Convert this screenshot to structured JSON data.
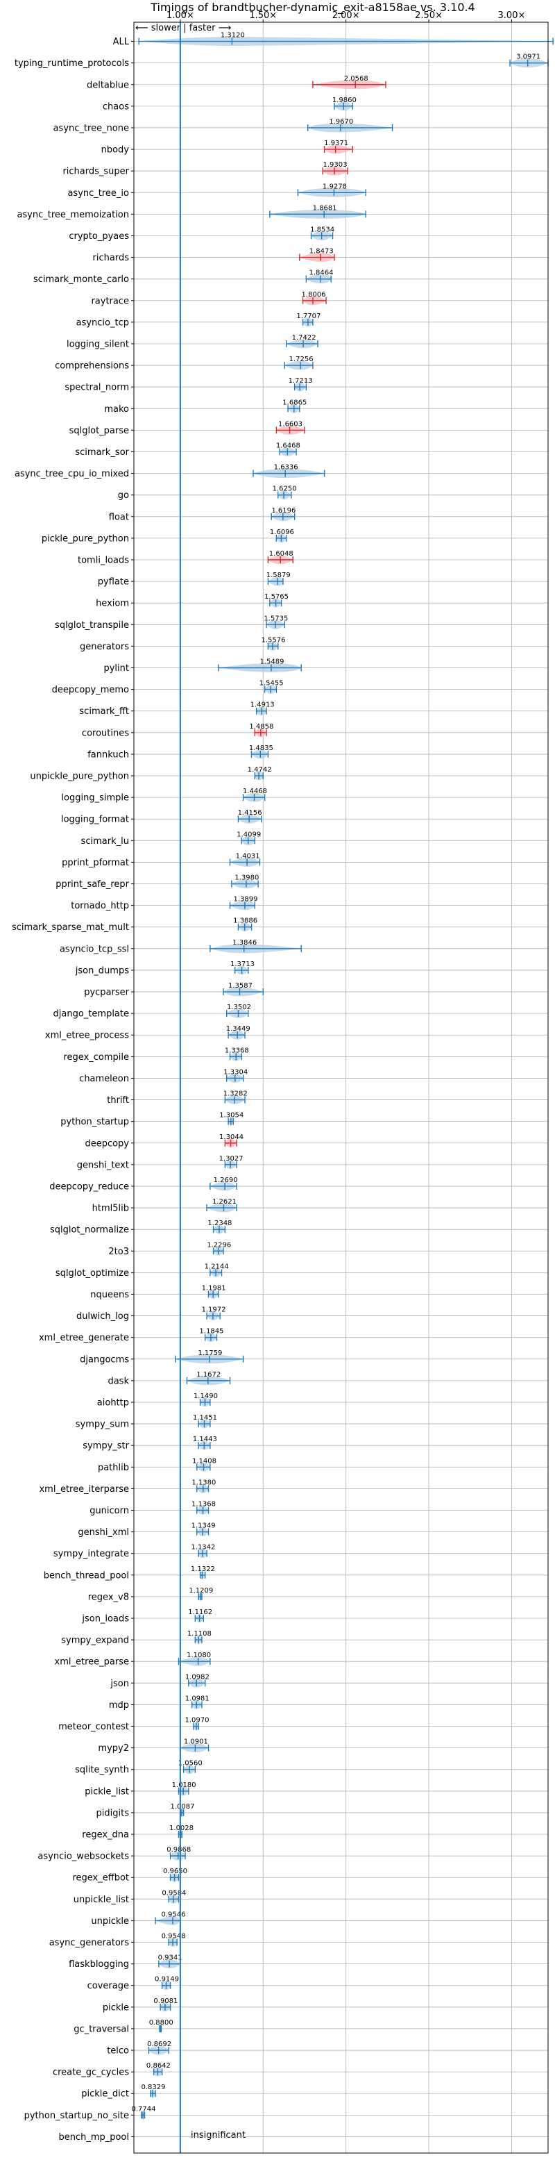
{
  "chart_data": {
    "type": "violin",
    "title": "Timings of brandtbucher-dynamic_exit-a8158ae vs. 3.10.4",
    "direction_note": "⟵ slower | faster ⟶",
    "x_ticks": [
      "1.00×",
      "1.50×",
      "2.00×",
      "2.50×",
      "3.00×"
    ],
    "x_tick_values": [
      1.0,
      1.5,
      2.0,
      2.5,
      3.0
    ],
    "xlim": [
      0.72,
      3.22
    ],
    "grid": true,
    "insignificant_label": "insignificant",
    "colors": {
      "faster": "#1f77b4",
      "faster_fill": "#b3cde3",
      "slower": "#d62728",
      "slower_fill": "#f4b6bb",
      "baseline": "#1f77b4"
    },
    "benchmarks": [
      {
        "name": "ALL",
        "label": "1.3120",
        "value": 1.312,
        "lo": 0.75,
        "hi": 3.25,
        "spread": 0.25,
        "slower": false
      },
      {
        "name": "typing_runtime_protocols",
        "label": "3.0971",
        "value": 3.0971,
        "lo": 2.99,
        "hi": 3.22,
        "spread": 0.07,
        "slower": false
      },
      {
        "name": "deltablue",
        "label": "2.0568",
        "value": 2.0568,
        "lo": 1.8,
        "hi": 2.24,
        "spread": 0.12,
        "slower": true
      },
      {
        "name": "chaos",
        "label": "1.9860",
        "value": 1.986,
        "lo": 1.93,
        "hi": 2.04,
        "spread": 0.03,
        "slower": false
      },
      {
        "name": "async_tree_none",
        "label": "1.9670",
        "value": 1.967,
        "lo": 1.77,
        "hi": 2.28,
        "spread": 0.15,
        "slower": false
      },
      {
        "name": "nbody",
        "label": "1.9371",
        "value": 1.9371,
        "lo": 1.87,
        "hi": 2.04,
        "spread": 0.04,
        "slower": true
      },
      {
        "name": "richards_super",
        "label": "1.9303",
        "value": 1.9303,
        "lo": 1.86,
        "hi": 2.01,
        "spread": 0.05,
        "slower": true
      },
      {
        "name": "async_tree_io",
        "label": "1.9278",
        "value": 1.9278,
        "lo": 1.71,
        "hi": 2.12,
        "spread": 0.14,
        "slower": false
      },
      {
        "name": "async_tree_memoization",
        "label": "1.8681",
        "value": 1.8681,
        "lo": 1.54,
        "hi": 2.12,
        "spread": 0.18,
        "slower": false
      },
      {
        "name": "crypto_pyaes",
        "label": "1.8534",
        "value": 1.8534,
        "lo": 1.79,
        "hi": 1.92,
        "spread": 0.04,
        "slower": false
      },
      {
        "name": "richards",
        "label": "1.8473",
        "value": 1.8473,
        "lo": 1.72,
        "hi": 1.93,
        "spread": 0.06,
        "slower": true
      },
      {
        "name": "scimark_monte_carlo",
        "label": "1.8464",
        "value": 1.8464,
        "lo": 1.76,
        "hi": 1.91,
        "spread": 0.05,
        "slower": false
      },
      {
        "name": "raytrace",
        "label": "1.8006",
        "value": 1.8006,
        "lo": 1.74,
        "hi": 1.88,
        "spread": 0.04,
        "slower": true
      },
      {
        "name": "asyncio_tcp",
        "label": "1.7707",
        "value": 1.7707,
        "lo": 1.74,
        "hi": 1.8,
        "spread": 0.02,
        "slower": false
      },
      {
        "name": "logging_silent",
        "label": "1.7422",
        "value": 1.7422,
        "lo": 1.64,
        "hi": 1.83,
        "spread": 0.05,
        "slower": false
      },
      {
        "name": "comprehensions",
        "label": "1.7256",
        "value": 1.7256,
        "lo": 1.63,
        "hi": 1.8,
        "spread": 0.05,
        "slower": false
      },
      {
        "name": "spectral_norm",
        "label": "1.7213",
        "value": 1.7213,
        "lo": 1.69,
        "hi": 1.76,
        "spread": 0.02,
        "slower": false
      },
      {
        "name": "mako",
        "label": "1.6865",
        "value": 1.6865,
        "lo": 1.65,
        "hi": 1.72,
        "spread": 0.02,
        "slower": false
      },
      {
        "name": "sqlglot_parse",
        "label": "1.6603",
        "value": 1.6603,
        "lo": 1.58,
        "hi": 1.75,
        "spread": 0.05,
        "slower": true
      },
      {
        "name": "scimark_sor",
        "label": "1.6468",
        "value": 1.6468,
        "lo": 1.6,
        "hi": 1.7,
        "spread": 0.03,
        "slower": false
      },
      {
        "name": "async_tree_cpu_io_mixed",
        "label": "1.6336",
        "value": 1.6336,
        "lo": 1.44,
        "hi": 1.87,
        "spread": 0.12,
        "slower": false
      },
      {
        "name": "go",
        "label": "1.6250",
        "value": 1.625,
        "lo": 1.59,
        "hi": 1.67,
        "spread": 0.02,
        "slower": false
      },
      {
        "name": "float",
        "label": "1.6196",
        "value": 1.6196,
        "lo": 1.55,
        "hi": 1.69,
        "spread": 0.04,
        "slower": false
      },
      {
        "name": "pickle_pure_python",
        "label": "1.6096",
        "value": 1.6096,
        "lo": 1.58,
        "hi": 1.64,
        "spread": 0.02,
        "slower": false
      },
      {
        "name": "tomli_loads",
        "label": "1.6048",
        "value": 1.6048,
        "lo": 1.53,
        "hi": 1.68,
        "spread": 0.04,
        "slower": true
      },
      {
        "name": "pyflate",
        "label": "1.5879",
        "value": 1.5879,
        "lo": 1.53,
        "hi": 1.62,
        "spread": 0.03,
        "slower": false
      },
      {
        "name": "hexiom",
        "label": "1.5765",
        "value": 1.5765,
        "lo": 1.54,
        "hi": 1.61,
        "spread": 0.02,
        "slower": false
      },
      {
        "name": "sqlglot_transpile",
        "label": "1.5735",
        "value": 1.5735,
        "lo": 1.52,
        "hi": 1.63,
        "spread": 0.03,
        "slower": false
      },
      {
        "name": "generators",
        "label": "1.5576",
        "value": 1.5576,
        "lo": 1.53,
        "hi": 1.59,
        "spread": 0.02,
        "slower": false
      },
      {
        "name": "pylint",
        "label": "1.5489",
        "value": 1.5489,
        "lo": 1.23,
        "hi": 1.73,
        "spread": 0.15,
        "slower": false
      },
      {
        "name": "deepcopy_memo",
        "label": "1.5455",
        "value": 1.5455,
        "lo": 1.51,
        "hi": 1.58,
        "spread": 0.02,
        "slower": false
      },
      {
        "name": "scimark_fft",
        "label": "1.4913",
        "value": 1.4913,
        "lo": 1.46,
        "hi": 1.52,
        "spread": 0.02,
        "slower": false
      },
      {
        "name": "coroutines",
        "label": "1.4858",
        "value": 1.4858,
        "lo": 1.45,
        "hi": 1.52,
        "spread": 0.02,
        "slower": true
      },
      {
        "name": "fannkuch",
        "label": "1.4835",
        "value": 1.4835,
        "lo": 1.43,
        "hi": 1.53,
        "spread": 0.03,
        "slower": false
      },
      {
        "name": "unpickle_pure_python",
        "label": "1.4742",
        "value": 1.4742,
        "lo": 1.45,
        "hi": 1.5,
        "spread": 0.02,
        "slower": false
      },
      {
        "name": "logging_simple",
        "label": "1.4468",
        "value": 1.4468,
        "lo": 1.38,
        "hi": 1.51,
        "spread": 0.04,
        "slower": false
      },
      {
        "name": "logging_format",
        "label": "1.4156",
        "value": 1.4156,
        "lo": 1.35,
        "hi": 1.49,
        "spread": 0.04,
        "slower": false
      },
      {
        "name": "scimark_lu",
        "label": "1.4099",
        "value": 1.4099,
        "lo": 1.37,
        "hi": 1.45,
        "spread": 0.03,
        "slower": false
      },
      {
        "name": "pprint_pformat",
        "label": "1.4031",
        "value": 1.4031,
        "lo": 1.3,
        "hi": 1.48,
        "spread": 0.05,
        "slower": false
      },
      {
        "name": "pprint_safe_repr",
        "label": "1.3980",
        "value": 1.398,
        "lo": 1.31,
        "hi": 1.47,
        "spread": 0.05,
        "slower": false
      },
      {
        "name": "tornado_http",
        "label": "1.3899",
        "value": 1.3899,
        "lo": 1.3,
        "hi": 1.45,
        "spread": 0.05,
        "slower": false
      },
      {
        "name": "scimark_sparse_mat_mult",
        "label": "1.3886",
        "value": 1.3886,
        "lo": 1.35,
        "hi": 1.43,
        "spread": 0.02,
        "slower": false
      },
      {
        "name": "asyncio_tcp_ssl",
        "label": "1.3846",
        "value": 1.3846,
        "lo": 1.18,
        "hi": 1.73,
        "spread": 0.12,
        "slower": false
      },
      {
        "name": "json_dumps",
        "label": "1.3713",
        "value": 1.3713,
        "lo": 1.33,
        "hi": 1.41,
        "spread": 0.02,
        "slower": false
      },
      {
        "name": "pycparser",
        "label": "1.3587",
        "value": 1.3587,
        "lo": 1.26,
        "hi": 1.5,
        "spread": 0.07,
        "slower": false
      },
      {
        "name": "django_template",
        "label": "1.3502",
        "value": 1.3502,
        "lo": 1.28,
        "hi": 1.41,
        "spread": 0.04,
        "slower": false
      },
      {
        "name": "xml_etree_process",
        "label": "1.3449",
        "value": 1.3449,
        "lo": 1.29,
        "hi": 1.39,
        "spread": 0.03,
        "slower": false
      },
      {
        "name": "regex_compile",
        "label": "1.3368",
        "value": 1.3368,
        "lo": 1.3,
        "hi": 1.37,
        "spread": 0.02,
        "slower": false
      },
      {
        "name": "chameleon",
        "label": "1.3304",
        "value": 1.3304,
        "lo": 1.28,
        "hi": 1.38,
        "spread": 0.03,
        "slower": false
      },
      {
        "name": "thrift",
        "label": "1.3282",
        "value": 1.3282,
        "lo": 1.27,
        "hi": 1.39,
        "spread": 0.03,
        "slower": false
      },
      {
        "name": "python_startup",
        "label": "1.3054",
        "value": 1.3054,
        "lo": 1.29,
        "hi": 1.32,
        "spread": 0.01,
        "slower": false
      },
      {
        "name": "deepcopy",
        "label": "1.3044",
        "value": 1.3044,
        "lo": 1.27,
        "hi": 1.34,
        "spread": 0.02,
        "slower": true
      },
      {
        "name": "genshi_text",
        "label": "1.3027",
        "value": 1.3027,
        "lo": 1.27,
        "hi": 1.34,
        "spread": 0.02,
        "slower": false
      },
      {
        "name": "deepcopy_reduce",
        "label": "1.2690",
        "value": 1.269,
        "lo": 1.18,
        "hi": 1.34,
        "spread": 0.04,
        "slower": false
      },
      {
        "name": "html5lib",
        "label": "1.2621",
        "value": 1.2621,
        "lo": 1.16,
        "hi": 1.34,
        "spread": 0.05,
        "slower": false
      },
      {
        "name": "sqlglot_normalize",
        "label": "1.2348",
        "value": 1.2348,
        "lo": 1.2,
        "hi": 1.27,
        "spread": 0.02,
        "slower": false
      },
      {
        "name": "2to3",
        "label": "1.2296",
        "value": 1.2296,
        "lo": 1.2,
        "hi": 1.26,
        "spread": 0.02,
        "slower": false
      },
      {
        "name": "sqlglot_optimize",
        "label": "1.2144",
        "value": 1.2144,
        "lo": 1.18,
        "hi": 1.25,
        "spread": 0.02,
        "slower": false
      },
      {
        "name": "nqueens",
        "label": "1.1981",
        "value": 1.1981,
        "lo": 1.17,
        "hi": 1.23,
        "spread": 0.02,
        "slower": false
      },
      {
        "name": "dulwich_log",
        "label": "1.1972",
        "value": 1.1972,
        "lo": 1.16,
        "hi": 1.24,
        "spread": 0.02,
        "slower": false
      },
      {
        "name": "xml_etree_generate",
        "label": "1.1845",
        "value": 1.1845,
        "lo": 1.15,
        "hi": 1.22,
        "spread": 0.02,
        "slower": false
      },
      {
        "name": "djangocms",
        "label": "1.1759",
        "value": 1.1759,
        "lo": 0.97,
        "hi": 1.38,
        "spread": 0.11,
        "slower": false
      },
      {
        "name": "dask",
        "label": "1.1672",
        "value": 1.1672,
        "lo": 1.04,
        "hi": 1.3,
        "spread": 0.07,
        "slower": false
      },
      {
        "name": "aiohttp",
        "label": "1.1490",
        "value": 1.149,
        "lo": 1.12,
        "hi": 1.18,
        "spread": 0.02,
        "slower": false
      },
      {
        "name": "sympy_sum",
        "label": "1.1451",
        "value": 1.1451,
        "lo": 1.11,
        "hi": 1.18,
        "spread": 0.02,
        "slower": false
      },
      {
        "name": "sympy_str",
        "label": "1.1443",
        "value": 1.1443,
        "lo": 1.11,
        "hi": 1.18,
        "spread": 0.02,
        "slower": false
      },
      {
        "name": "pathlib",
        "label": "1.1408",
        "value": 1.1408,
        "lo": 1.1,
        "hi": 1.18,
        "spread": 0.02,
        "slower": false
      },
      {
        "name": "xml_etree_iterparse",
        "label": "1.1380",
        "value": 1.138,
        "lo": 1.1,
        "hi": 1.17,
        "spread": 0.02,
        "slower": false
      },
      {
        "name": "gunicorn",
        "label": "1.1368",
        "value": 1.1368,
        "lo": 1.1,
        "hi": 1.17,
        "spread": 0.02,
        "slower": false
      },
      {
        "name": "genshi_xml",
        "label": "1.1349",
        "value": 1.1349,
        "lo": 1.1,
        "hi": 1.17,
        "spread": 0.02,
        "slower": false
      },
      {
        "name": "sympy_integrate",
        "label": "1.1342",
        "value": 1.1342,
        "lo": 1.11,
        "hi": 1.16,
        "spread": 0.02,
        "slower": false
      },
      {
        "name": "bench_thread_pool",
        "label": "1.1322",
        "value": 1.1322,
        "lo": 1.12,
        "hi": 1.15,
        "spread": 0.01,
        "slower": false
      },
      {
        "name": "regex_v8",
        "label": "1.1209",
        "value": 1.1209,
        "lo": 1.11,
        "hi": 1.13,
        "spread": 0.01,
        "slower": false
      },
      {
        "name": "json_loads",
        "label": "1.1162",
        "value": 1.1162,
        "lo": 1.09,
        "hi": 1.14,
        "spread": 0.01,
        "slower": false
      },
      {
        "name": "sympy_expand",
        "label": "1.1108",
        "value": 1.1108,
        "lo": 1.09,
        "hi": 1.13,
        "spread": 0.01,
        "slower": false
      },
      {
        "name": "xml_etree_parse",
        "label": "1.1080",
        "value": 1.108,
        "lo": 0.99,
        "hi": 1.18,
        "spread": 0.04,
        "slower": false
      },
      {
        "name": "json",
        "label": "1.0982",
        "value": 1.0982,
        "lo": 1.05,
        "hi": 1.15,
        "spread": 0.03,
        "slower": false
      },
      {
        "name": "mdp",
        "label": "1.0981",
        "value": 1.0981,
        "lo": 1.07,
        "hi": 1.13,
        "spread": 0.02,
        "slower": false
      },
      {
        "name": "meteor_contest",
        "label": "1.0970",
        "value": 1.097,
        "lo": 1.08,
        "hi": 1.11,
        "spread": 0.01,
        "slower": false
      },
      {
        "name": "mypy2",
        "label": "1.0901",
        "value": 1.0901,
        "lo": 1.0,
        "hi": 1.17,
        "spread": 0.05,
        "slower": false
      },
      {
        "name": "sqlite_synth",
        "label": "1.0560",
        "value": 1.056,
        "lo": 1.02,
        "hi": 1.09,
        "spread": 0.02,
        "slower": false
      },
      {
        "name": "pickle_list",
        "label": "1.0180",
        "value": 1.018,
        "lo": 0.99,
        "hi": 1.05,
        "spread": 0.02,
        "slower": false
      },
      {
        "name": "pidigits",
        "label": "1.0087",
        "value": 1.0087,
        "lo": 1.0,
        "hi": 1.02,
        "spread": 0.01,
        "slower": false
      },
      {
        "name": "regex_dna",
        "label": "1.0028",
        "value": 1.0028,
        "lo": 0.99,
        "hi": 1.01,
        "spread": 0.01,
        "slower": false
      },
      {
        "name": "asyncio_websockets",
        "label": "0.9868",
        "value": 0.9868,
        "lo": 0.94,
        "hi": 1.03,
        "spread": 0.03,
        "slower": false
      },
      {
        "name": "regex_effbot",
        "label": "0.9650",
        "value": 0.965,
        "lo": 0.94,
        "hi": 0.99,
        "spread": 0.02,
        "slower": false
      },
      {
        "name": "unpickle_list",
        "label": "0.9584",
        "value": 0.9584,
        "lo": 0.93,
        "hi": 0.99,
        "spread": 0.02,
        "slower": false
      },
      {
        "name": "unpickle",
        "label": "0.9546",
        "value": 0.9546,
        "lo": 0.85,
        "hi": 1.0,
        "spread": 0.03,
        "slower": false
      },
      {
        "name": "async_generators",
        "label": "0.9548",
        "value": 0.9548,
        "lo": 0.93,
        "hi": 0.98,
        "spread": 0.02,
        "slower": false
      },
      {
        "name": "flaskblogging",
        "label": "0.9341",
        "value": 0.9341,
        "lo": 0.87,
        "hi": 1.0,
        "spread": 0.04,
        "slower": false
      },
      {
        "name": "coverage",
        "label": "0.9149",
        "value": 0.9149,
        "lo": 0.89,
        "hi": 0.94,
        "spread": 0.02,
        "slower": false
      },
      {
        "name": "pickle",
        "label": "0.9081",
        "value": 0.9081,
        "lo": 0.88,
        "hi": 0.94,
        "spread": 0.02,
        "slower": false
      },
      {
        "name": "gc_traversal",
        "label": "0.8800",
        "value": 0.88,
        "lo": 0.875,
        "hi": 0.885,
        "spread": 0.01,
        "slower": false
      },
      {
        "name": "telco",
        "label": "0.8692",
        "value": 0.8692,
        "lo": 0.81,
        "hi": 0.93,
        "spread": 0.04,
        "slower": false
      },
      {
        "name": "create_gc_cycles",
        "label": "0.8642",
        "value": 0.8642,
        "lo": 0.84,
        "hi": 0.89,
        "spread": 0.02,
        "slower": false
      },
      {
        "name": "pickle_dict",
        "label": "0.8329",
        "value": 0.8329,
        "lo": 0.82,
        "hi": 0.85,
        "spread": 0.01,
        "slower": false
      },
      {
        "name": "python_startup_no_site",
        "label": "0.7744",
        "value": 0.7744,
        "lo": 0.765,
        "hi": 0.785,
        "spread": 0.01,
        "slower": false
      },
      {
        "name": "bench_mp_pool",
        "label": "",
        "value": null,
        "lo": null,
        "hi": null,
        "spread": 0,
        "slower": false
      }
    ]
  }
}
